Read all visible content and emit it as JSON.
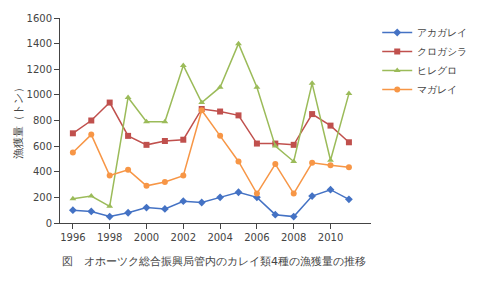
{
  "chart_data": {
    "type": "line",
    "ylabel": "漁獲量（トン）",
    "caption": "図　オホーツク総合振興局管内のカレイ類4種の漁獲量の推移",
    "x": [
      1996,
      1997,
      1998,
      1999,
      2000,
      2001,
      2002,
      2003,
      2004,
      2005,
      2006,
      2007,
      2008,
      2009,
      2010,
      2011
    ],
    "series": [
      {
        "name": "アカガレイ",
        "color": "#4472c4",
        "marker": "diamond",
        "values": [
          100,
          90,
          50,
          80,
          120,
          110,
          170,
          160,
          200,
          240,
          200,
          65,
          50,
          210,
          260,
          185
        ]
      },
      {
        "name": "クロガシラ",
        "color": "#c0504d",
        "marker": "square",
        "values": [
          700,
          800,
          940,
          680,
          610,
          640,
          650,
          890,
          870,
          840,
          620,
          620,
          610,
          850,
          760,
          630
        ]
      },
      {
        "name": "ヒレグロ",
        "color": "#9bbb59",
        "marker": "triangle-up",
        "values": [
          190,
          210,
          130,
          980,
          790,
          790,
          1230,
          940,
          1060,
          1400,
          1060,
          600,
          480,
          1090,
          490,
          1010
        ]
      },
      {
        "name": "マガレイ",
        "color": "#f79646",
        "marker": "circle",
        "values": [
          550,
          690,
          370,
          415,
          290,
          320,
          370,
          880,
          680,
          480,
          230,
          460,
          230,
          470,
          450,
          435
        ]
      }
    ],
    "xlim": [
      1995.3,
      2012.2
    ],
    "xticks": [
      1996,
      1998,
      2000,
      2002,
      2004,
      2006,
      2008,
      2010
    ],
    "ylim": [
      0,
      1600
    ],
    "yticks": [
      0,
      200,
      400,
      600,
      800,
      1000,
      1200,
      1400,
      1600
    ],
    "grid": false,
    "legend": "upper right"
  }
}
